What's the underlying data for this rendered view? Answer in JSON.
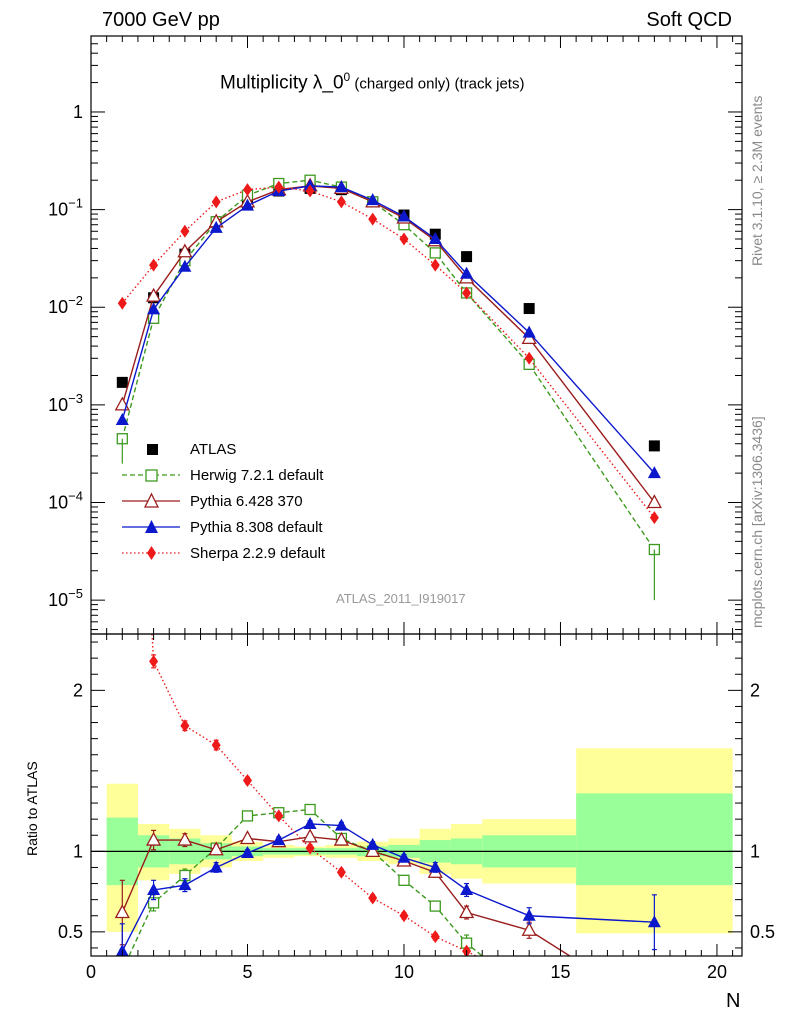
{
  "header": {
    "left": "7000 GeV pp",
    "right": "Soft QCD"
  },
  "title": {
    "main": "Multiplicity λ_0",
    "superscript": "0",
    "suffix": " (charged only) (track jets)"
  },
  "side_labels": {
    "rivet": "Rivet 3.1.10, ≥ 2.3M events",
    "mcplots": "mcplots.cern.ch [arXiv:1306.3436]"
  },
  "watermark": "ATLAS_2011_I919017",
  "ratio_ylabel": "Ratio to ATLAS",
  "xlabel": "N",
  "chart_data": [
    {
      "type": "scatter",
      "panel": "main",
      "yscale": "log",
      "xlim": [
        0,
        20.8
      ],
      "ylim": [
        4.5e-06,
        6
      ],
      "xticks": [
        0,
        5,
        10,
        15,
        20
      ],
      "yticks": [
        {
          "value": 1,
          "label": "1"
        },
        {
          "value": 0.1,
          "label": "10^-1"
        },
        {
          "value": 0.01,
          "label": "10^-2"
        },
        {
          "value": 0.001,
          "label": "10^-3"
        },
        {
          "value": 0.0001,
          "label": "10^-4"
        },
        {
          "value": 1e-05,
          "label": "10^-5"
        }
      ],
      "series": [
        {
          "name": "ATLAS",
          "color": "#000000",
          "marker": "square-filled",
          "line": "none",
          "x": [
            1,
            2,
            3,
            4,
            5,
            6,
            7,
            8,
            9,
            10,
            11,
            12,
            14,
            18
          ],
          "y": [
            0.0017,
            0.0125,
            0.035,
            0.075,
            0.115,
            0.155,
            0.165,
            0.16,
            0.12,
            0.088,
            0.056,
            0.033,
            0.0097,
            0.00038
          ]
        },
        {
          "name": "Herwig 7.2.1 default",
          "color": "#3d9a1e",
          "marker": "square-open",
          "line": "dashed",
          "x": [
            1,
            2,
            3,
            4,
            5,
            6,
            7,
            8,
            9,
            10,
            11,
            12,
            14,
            18
          ],
          "y": [
            0.00045,
            0.0077,
            0.03,
            0.075,
            0.14,
            0.185,
            0.2,
            0.17,
            0.12,
            0.07,
            0.036,
            0.014,
            0.0026,
            3.3e-05
          ]
        },
        {
          "name": "Pythia 6.428 370",
          "color": "#9a1d1d",
          "marker": "triangle-open",
          "line": "solid",
          "x": [
            1,
            2,
            3,
            4,
            5,
            6,
            7,
            8,
            9,
            10,
            11,
            12,
            14,
            18
          ],
          "y": [
            0.001,
            0.013,
            0.037,
            0.075,
            0.12,
            0.16,
            0.175,
            0.165,
            0.12,
            0.082,
            0.048,
            0.02,
            0.0048,
            0.0001
          ]
        },
        {
          "name": "Pythia 8.308 default",
          "color": "#0b18cc",
          "marker": "triangle-filled",
          "line": "solid",
          "x": [
            1,
            2,
            3,
            4,
            5,
            6,
            7,
            8,
            9,
            10,
            11,
            12,
            14,
            18
          ],
          "y": [
            0.0007,
            0.0095,
            0.026,
            0.065,
            0.11,
            0.155,
            0.175,
            0.17,
            0.125,
            0.085,
            0.05,
            0.022,
            0.0055,
            0.0002
          ]
        },
        {
          "name": "Sherpa 2.2.9 default",
          "color": "#ee1a1a",
          "marker": "diamond-filled",
          "line": "dotted",
          "x": [
            1,
            2,
            3,
            4,
            5,
            6,
            7,
            8,
            9,
            10,
            11,
            12,
            14,
            18
          ],
          "y": [
            0.011,
            0.027,
            0.06,
            0.12,
            0.16,
            0.17,
            0.155,
            0.12,
            0.08,
            0.05,
            0.027,
            0.014,
            0.003,
            7e-05
          ]
        }
      ]
    },
    {
      "type": "scatter",
      "panel": "ratio",
      "ylabel": "Ratio to ATLAS",
      "xlabel": "N",
      "xlim": [
        0,
        20.8
      ],
      "ylim": [
        0.35,
        2.35
      ],
      "xticks": [
        0,
        5,
        10,
        15,
        20
      ],
      "yticks": [
        0.5,
        1,
        2
      ],
      "bands": {
        "edges": [
          0.5,
          1.5,
          2.5,
          3.5,
          4.5,
          5.5,
          6.5,
          7.5,
          8.5,
          9.5,
          10.5,
          11.5,
          12.5,
          15.5,
          20.5
        ],
        "inner_low": [
          0.79,
          0.9,
          0.92,
          0.95,
          0.97,
          0.98,
          0.98,
          0.98,
          0.97,
          0.96,
          0.93,
          0.92,
          0.9,
          0.79
        ],
        "inner_high": [
          1.21,
          1.1,
          1.08,
          1.05,
          1.03,
          1.02,
          1.02,
          1.02,
          1.03,
          1.04,
          1.07,
          1.08,
          1.1,
          1.36
        ],
        "outer_low": [
          0.5,
          0.82,
          0.86,
          0.9,
          0.94,
          0.96,
          0.97,
          0.96,
          0.94,
          0.92,
          0.86,
          0.83,
          0.8,
          0.49
        ],
        "outer_high": [
          1.42,
          1.17,
          1.14,
          1.1,
          1.06,
          1.04,
          1.03,
          1.04,
          1.06,
          1.08,
          1.14,
          1.17,
          1.2,
          1.64
        ],
        "inner_color": "#99ff99",
        "outer_color": "#ffff99"
      },
      "series": [
        {
          "name": "Herwig 7.2.1 default",
          "color": "#3d9a1e",
          "marker": "square-open",
          "line": "dashed",
          "x": [
            1,
            2,
            3,
            4,
            5,
            6,
            7,
            8,
            9,
            10,
            11,
            12,
            12.5
          ],
          "y": [
            0.26,
            0.68,
            0.85,
            1.02,
            1.22,
            1.24,
            1.26,
            1.08,
            1.0,
            0.82,
            0.66,
            0.43,
            0.35
          ],
          "err": [
            0,
            0.05,
            0.04,
            0.03,
            0.02,
            0.02,
            0.02,
            0.02,
            0.02,
            0.02,
            0.03,
            0.05,
            0
          ]
        },
        {
          "name": "Pythia 6.428 370",
          "color": "#9a1d1d",
          "marker": "triangle-open",
          "line": "solid",
          "x": [
            1,
            2,
            3,
            4,
            5,
            6,
            7,
            8,
            9,
            10,
            11,
            12,
            14,
            15.3
          ],
          "y": [
            0.62,
            1.07,
            1.07,
            1.01,
            1.08,
            1.06,
            1.09,
            1.07,
            1.0,
            0.94,
            0.87,
            0.62,
            0.51,
            0.35
          ],
          "err": [
            0.2,
            0.06,
            0.04,
            0.03,
            0.02,
            0.02,
            0.02,
            0.02,
            0.02,
            0.02,
            0.03,
            0.04,
            0.05,
            0
          ]
        },
        {
          "name": "Pythia 8.308 default",
          "color": "#0b18cc",
          "marker": "triangle-filled",
          "line": "solid",
          "x": [
            1,
            2,
            3,
            4,
            5,
            6,
            7,
            8,
            9,
            10,
            11,
            12,
            14,
            18
          ],
          "y": [
            0.38,
            0.76,
            0.79,
            0.9,
            0.99,
            1.07,
            1.17,
            1.16,
            1.04,
            0.96,
            0.9,
            0.76,
            0.6,
            0.56
          ],
          "err": [
            0.17,
            0.06,
            0.04,
            0.03,
            0.02,
            0.02,
            0.02,
            0.02,
            0.02,
            0.02,
            0.03,
            0.04,
            0.05,
            0.17
          ]
        },
        {
          "name": "Sherpa 2.2.9 default",
          "color": "#ee1a1a",
          "marker": "diamond-filled",
          "line": "dotted",
          "x": [
            1.95,
            2,
            3,
            4,
            5,
            6,
            7,
            8,
            9,
            10,
            11,
            12,
            12.3
          ],
          "y": [
            2.35,
            2.18,
            1.78,
            1.66,
            1.44,
            1.22,
            1.02,
            0.87,
            0.71,
            0.6,
            0.47,
            0.38,
            0.35
          ],
          "err": [
            0,
            0.04,
            0.03,
            0.03,
            0.02,
            0.02,
            0.02,
            0.02,
            0.02,
            0.02,
            0.02,
            0.02,
            0
          ]
        }
      ]
    }
  ]
}
